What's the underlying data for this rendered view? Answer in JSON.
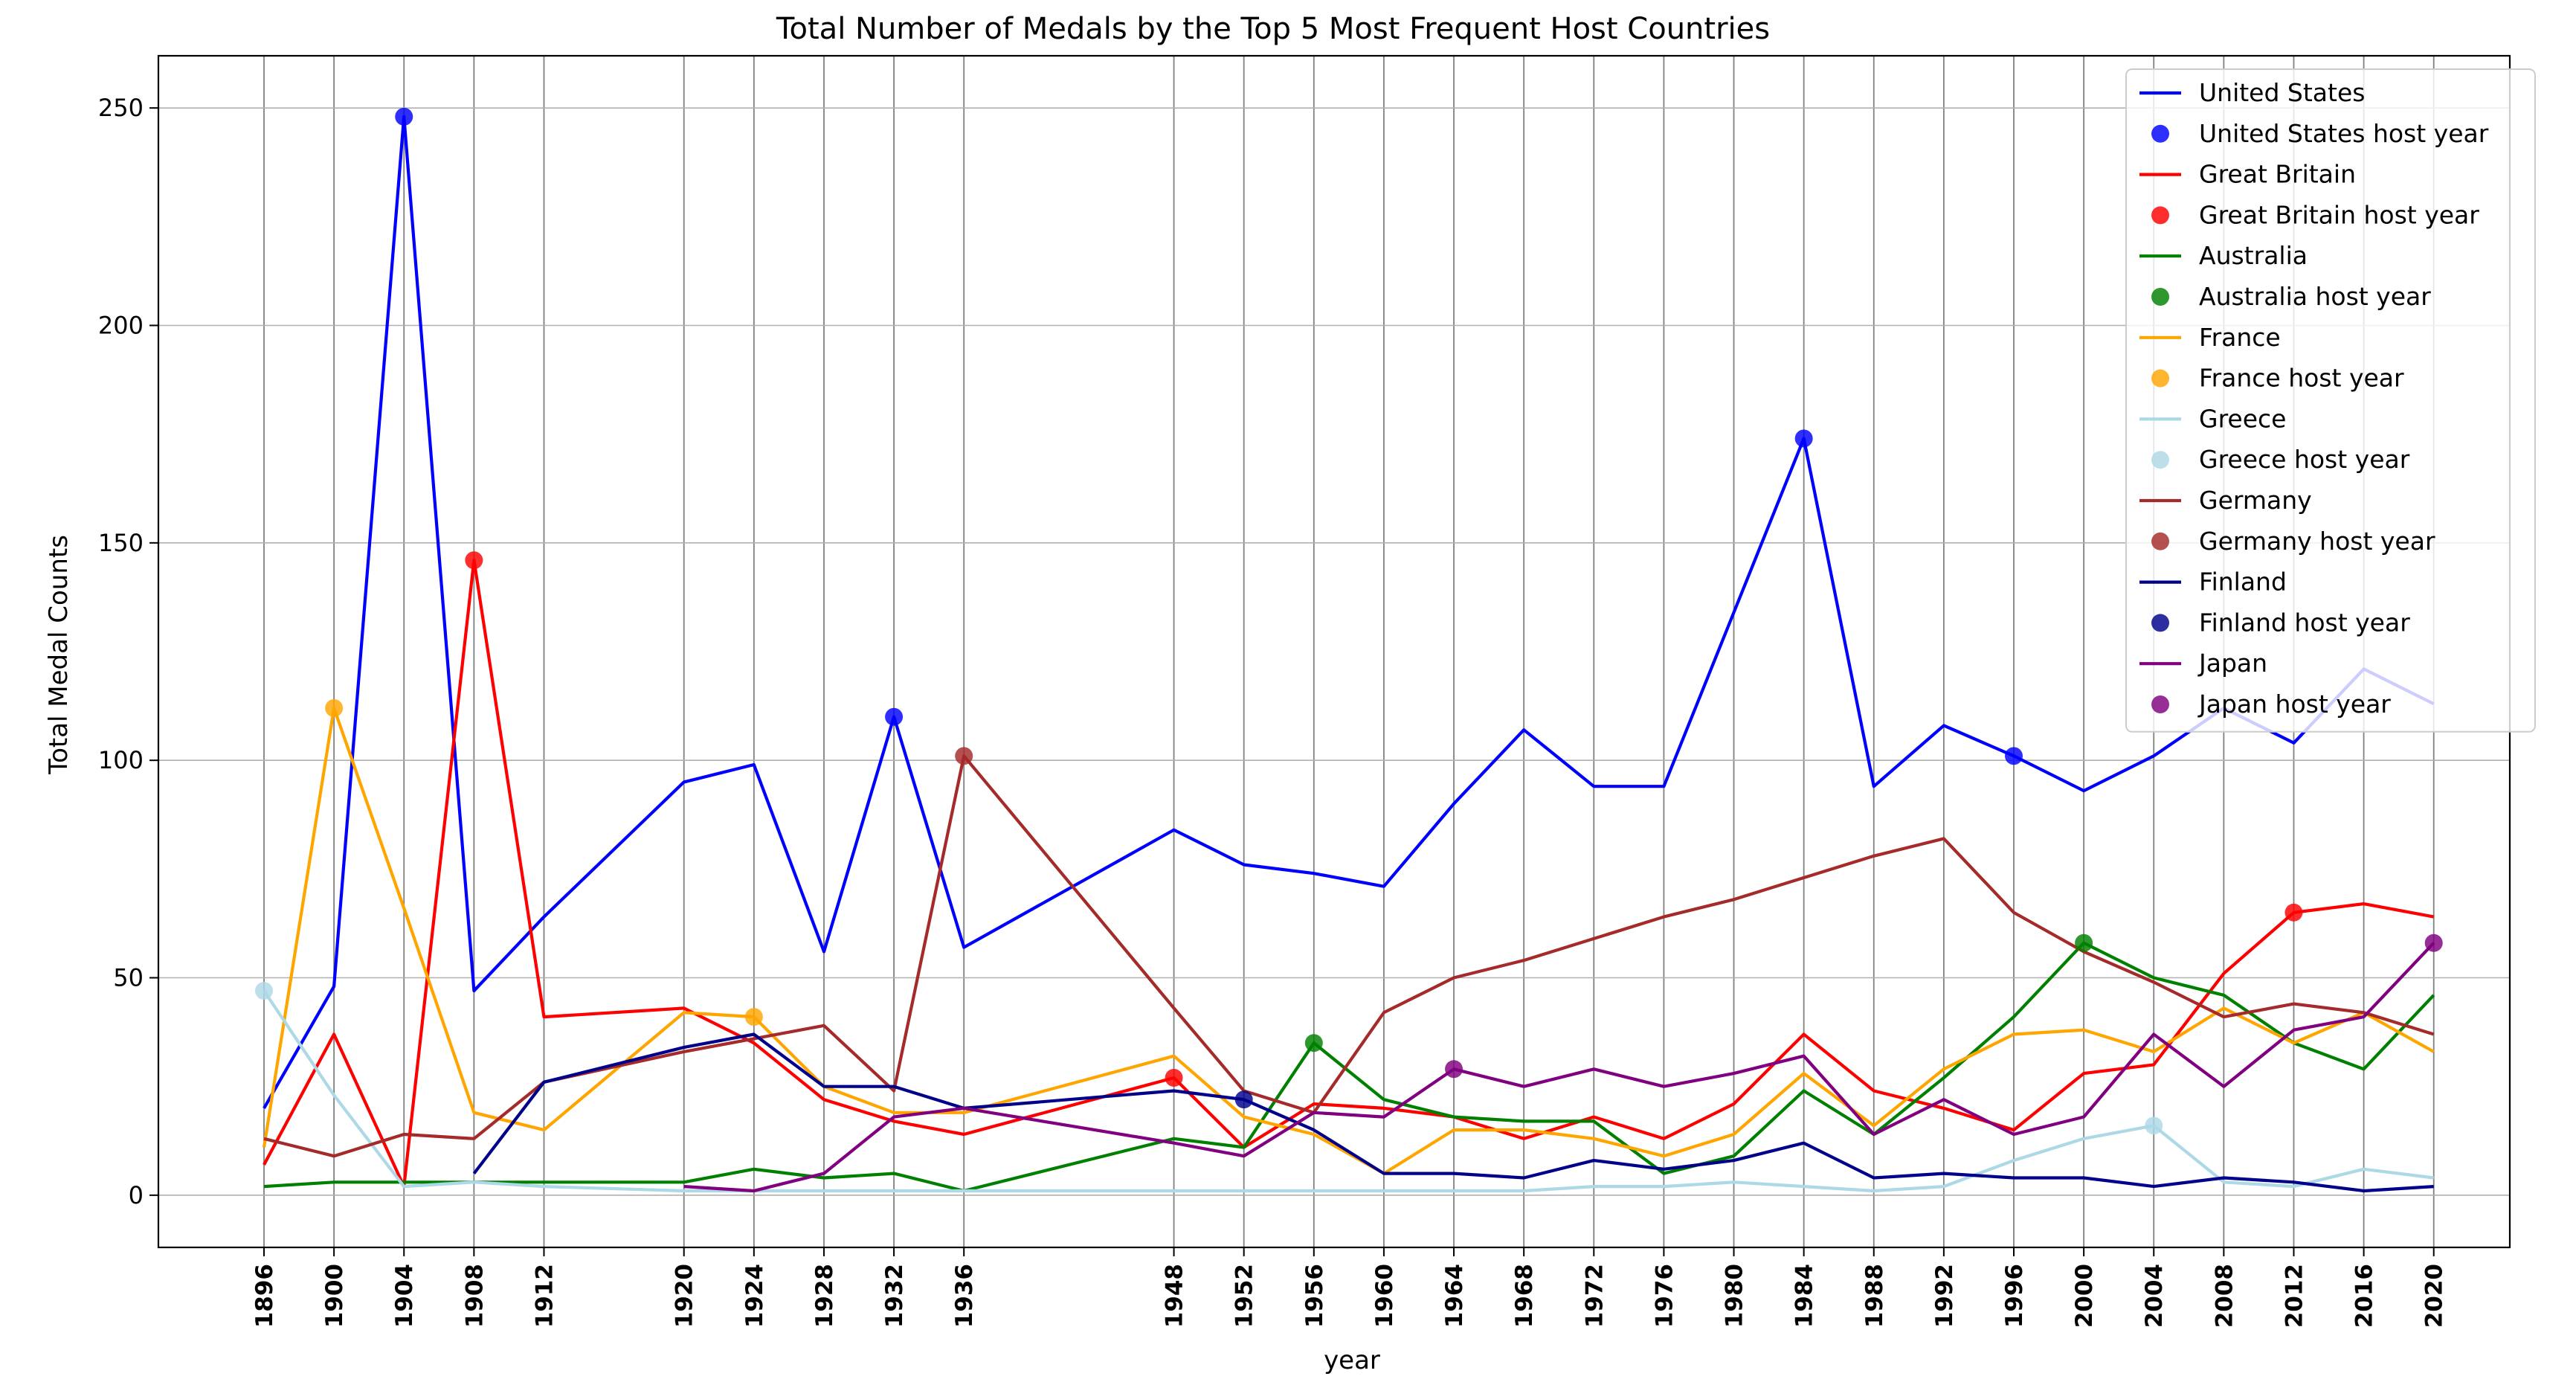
{
  "chart_data": {
    "type": "line",
    "title": "Total Number of Medals by the Top 5 Most Frequent Host Countries",
    "xlabel": "year",
    "ylabel": "Total Medal Counts",
    "ylim": [
      -12,
      262
    ],
    "yticks": [
      0,
      50,
      100,
      150,
      200,
      250
    ],
    "grid": true,
    "legend_placement": "upper right",
    "x": [
      1896,
      1900,
      1904,
      1908,
      1912,
      1920,
      1924,
      1928,
      1932,
      1936,
      1948,
      1952,
      1956,
      1960,
      1964,
      1968,
      1972,
      1976,
      1980,
      1984,
      1988,
      1992,
      1996,
      2000,
      2004,
      2008,
      2012,
      2016,
      2020
    ],
    "series": [
      {
        "name": "United States",
        "host_label": "United States host year",
        "color": "#0000ff",
        "points": [
          [
            1896,
            20
          ],
          [
            1900,
            48
          ],
          [
            1904,
            248
          ],
          [
            1908,
            47
          ],
          [
            1912,
            64
          ],
          [
            1920,
            95
          ],
          [
            1924,
            99
          ],
          [
            1928,
            56
          ],
          [
            1932,
            110
          ],
          [
            1936,
            57
          ],
          [
            1948,
            84
          ],
          [
            1952,
            76
          ],
          [
            1956,
            74
          ],
          [
            1960,
            71
          ],
          [
            1964,
            90
          ],
          [
            1968,
            107
          ],
          [
            1972,
            94
          ],
          [
            1976,
            94
          ],
          [
            1980,
            134
          ],
          [
            1984,
            174
          ],
          [
            1988,
            94
          ],
          [
            1992,
            108
          ],
          [
            1996,
            101
          ],
          [
            2000,
            93
          ],
          [
            2004,
            101
          ],
          [
            2008,
            112
          ],
          [
            2012,
            104
          ],
          [
            2016,
            121
          ],
          [
            2020,
            113
          ]
        ],
        "hosts": [
          [
            1904,
            248
          ],
          [
            1932,
            110
          ],
          [
            1984,
            174
          ],
          [
            1996,
            101
          ]
        ]
      },
      {
        "name": "Great Britain",
        "host_label": "Great Britain host year",
        "color": "#ff0000",
        "points": [
          [
            1896,
            7
          ],
          [
            1900,
            37
          ],
          [
            1904,
            2
          ],
          [
            1908,
            146
          ],
          [
            1912,
            41
          ],
          [
            1920,
            43
          ],
          [
            1924,
            35
          ],
          [
            1928,
            22
          ],
          [
            1932,
            17
          ],
          [
            1936,
            14
          ],
          [
            1948,
            27
          ],
          [
            1952,
            11
          ],
          [
            1956,
            21
          ],
          [
            1960,
            20
          ],
          [
            1964,
            18
          ],
          [
            1968,
            13
          ],
          [
            1972,
            18
          ],
          [
            1976,
            13
          ],
          [
            1980,
            21
          ],
          [
            1984,
            37
          ],
          [
            1988,
            24
          ],
          [
            1992,
            20
          ],
          [
            1996,
            15
          ],
          [
            2000,
            28
          ],
          [
            2004,
            30
          ],
          [
            2008,
            51
          ],
          [
            2012,
            65
          ],
          [
            2016,
            67
          ],
          [
            2020,
            64
          ]
        ],
        "hosts": [
          [
            1908,
            146
          ],
          [
            1948,
            27
          ],
          [
            2012,
            65
          ]
        ]
      },
      {
        "name": "Australia",
        "host_label": "Australia host year",
        "color": "#008000",
        "points": [
          [
            1896,
            2
          ],
          [
            1900,
            3
          ],
          [
            1904,
            3
          ],
          [
            1908,
            3
          ],
          [
            1912,
            3
          ],
          [
            1920,
            3
          ],
          [
            1924,
            6
          ],
          [
            1928,
            4
          ],
          [
            1932,
            5
          ],
          [
            1936,
            1
          ],
          [
            1948,
            13
          ],
          [
            1952,
            11
          ],
          [
            1956,
            35
          ],
          [
            1960,
            22
          ],
          [
            1964,
            18
          ],
          [
            1968,
            17
          ],
          [
            1972,
            17
          ],
          [
            1976,
            5
          ],
          [
            1980,
            9
          ],
          [
            1984,
            24
          ],
          [
            1988,
            14
          ],
          [
            1992,
            27
          ],
          [
            1996,
            41
          ],
          [
            2000,
            58
          ],
          [
            2004,
            50
          ],
          [
            2008,
            46
          ],
          [
            2012,
            35
          ],
          [
            2016,
            29
          ],
          [
            2020,
            46
          ]
        ],
        "hosts": [
          [
            1956,
            35
          ],
          [
            2000,
            58
          ]
        ]
      },
      {
        "name": "France",
        "host_label": "France host year",
        "color": "#ffa500",
        "points": [
          [
            1896,
            11
          ],
          [
            1900,
            112
          ],
          [
            1904,
            66
          ],
          [
            1908,
            19
          ],
          [
            1912,
            15
          ],
          [
            1920,
            42
          ],
          [
            1924,
            41
          ],
          [
            1928,
            25
          ],
          [
            1932,
            19
          ],
          [
            1936,
            19
          ],
          [
            1948,
            32
          ],
          [
            1952,
            18
          ],
          [
            1956,
            14
          ],
          [
            1960,
            5
          ],
          [
            1964,
            15
          ],
          [
            1968,
            15
          ],
          [
            1972,
            13
          ],
          [
            1976,
            9
          ],
          [
            1980,
            14
          ],
          [
            1984,
            28
          ],
          [
            1988,
            16
          ],
          [
            1992,
            29
          ],
          [
            1996,
            37
          ],
          [
            2000,
            38
          ],
          [
            2004,
            33
          ],
          [
            2008,
            43
          ],
          [
            2012,
            35
          ],
          [
            2016,
            42
          ],
          [
            2020,
            33
          ]
        ],
        "hosts": [
          [
            1900,
            112
          ],
          [
            1924,
            41
          ]
        ]
      },
      {
        "name": "Greece",
        "host_label": "Greece host year",
        "color": "#add8e6",
        "points": [
          [
            1896,
            47
          ],
          [
            1900,
            23
          ],
          [
            1904,
            2
          ],
          [
            1908,
            3
          ],
          [
            1912,
            2
          ],
          [
            1920,
            1
          ],
          [
            1924,
            1
          ],
          [
            1928,
            1
          ],
          [
            1932,
            1
          ],
          [
            1936,
            1
          ],
          [
            1948,
            1
          ],
          [
            1952,
            1
          ],
          [
            1956,
            1
          ],
          [
            1960,
            1
          ],
          [
            1964,
            1
          ],
          [
            1968,
            1
          ],
          [
            1972,
            2
          ],
          [
            1976,
            2
          ],
          [
            1980,
            3
          ],
          [
            1984,
            2
          ],
          [
            1988,
            1
          ],
          [
            1992,
            2
          ],
          [
            1996,
            8
          ],
          [
            2000,
            13
          ],
          [
            2004,
            16
          ],
          [
            2008,
            3
          ],
          [
            2012,
            2
          ],
          [
            2016,
            6
          ],
          [
            2020,
            4
          ]
        ],
        "hosts": [
          [
            1896,
            47
          ],
          [
            2004,
            16
          ]
        ]
      },
      {
        "name": "Germany",
        "host_label": "Germany host year",
        "color": "#a52a2a",
        "points": [
          [
            1896,
            13
          ],
          [
            1900,
            9
          ],
          [
            1904,
            14
          ],
          [
            1908,
            13
          ],
          [
            1912,
            26
          ],
          [
            1920,
            33
          ],
          [
            1924,
            36
          ],
          [
            1928,
            39
          ],
          [
            1932,
            24
          ],
          [
            1936,
            101
          ],
          [
            1948,
            43
          ],
          [
            1952,
            24
          ],
          [
            1956,
            19
          ],
          [
            1960,
            42
          ],
          [
            1964,
            50
          ],
          [
            1968,
            54
          ],
          [
            1972,
            59
          ],
          [
            1976,
            64
          ],
          [
            1980,
            68
          ],
          [
            1984,
            73
          ],
          [
            1988,
            78
          ],
          [
            1992,
            82
          ],
          [
            1996,
            65
          ],
          [
            2000,
            56
          ],
          [
            2004,
            49
          ],
          [
            2008,
            41
          ],
          [
            2012,
            44
          ],
          [
            2016,
            42
          ],
          [
            2020,
            37
          ]
        ],
        "hosts": [
          [
            1936,
            101
          ]
        ]
      },
      {
        "name": "Finland",
        "host_label": "Finland host year",
        "color": "#00008b",
        "points": [
          [
            1908,
            5
          ],
          [
            1912,
            26
          ],
          [
            1920,
            34
          ],
          [
            1924,
            37
          ],
          [
            1928,
            25
          ],
          [
            1932,
            25
          ],
          [
            1936,
            20
          ],
          [
            1948,
            24
          ],
          [
            1952,
            22
          ],
          [
            1956,
            15
          ],
          [
            1960,
            5
          ],
          [
            1964,
            5
          ],
          [
            1968,
            4
          ],
          [
            1972,
            8
          ],
          [
            1976,
            6
          ],
          [
            1980,
            8
          ],
          [
            1984,
            12
          ],
          [
            1988,
            4
          ],
          [
            1992,
            5
          ],
          [
            1996,
            4
          ],
          [
            2000,
            4
          ],
          [
            2004,
            2
          ],
          [
            2008,
            4
          ],
          [
            2012,
            3
          ],
          [
            2016,
            1
          ],
          [
            2020,
            2
          ]
        ],
        "hosts": [
          [
            1952,
            22
          ]
        ]
      },
      {
        "name": "Japan",
        "host_label": "Japan host year",
        "color": "#800080",
        "points": [
          [
            1920,
            2
          ],
          [
            1924,
            1
          ],
          [
            1928,
            5
          ],
          [
            1932,
            18
          ],
          [
            1936,
            20
          ],
          [
            1948,
            12
          ],
          [
            1952,
            9
          ],
          [
            1956,
            19
          ],
          [
            1960,
            18
          ],
          [
            1964,
            29
          ],
          [
            1968,
            25
          ],
          [
            1972,
            29
          ],
          [
            1976,
            25
          ],
          [
            1980,
            28
          ],
          [
            1984,
            32
          ],
          [
            1988,
            14
          ],
          [
            1992,
            22
          ],
          [
            1996,
            14
          ],
          [
            2000,
            18
          ],
          [
            2004,
            37
          ],
          [
            2008,
            25
          ],
          [
            2012,
            38
          ],
          [
            2016,
            41
          ],
          [
            2020,
            58
          ]
        ],
        "hosts": [
          [
            1964,
            29
          ],
          [
            2020,
            58
          ]
        ]
      }
    ]
  }
}
